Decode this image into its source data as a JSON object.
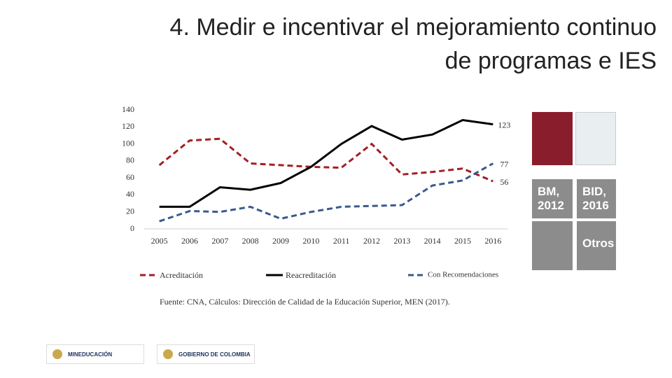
{
  "slide": {
    "title_lines": [
      "4.  Medir e incentivar el mejoramiento continuo",
      "de programas e IES"
    ],
    "source": "Fuente: CNA, Cálculos: Dirección de Calidad de la Educación Superior, MEN (2017).",
    "panels": [
      "BM, 2012",
      "BID, 2016",
      "Otros"
    ],
    "logos": [
      "MINEDUCACIÓN",
      "GOBIERNO DE COLOMBIA"
    ]
  },
  "chart_data": {
    "type": "line",
    "categories": [
      "2005",
      "2006",
      "2007",
      "2008",
      "2009",
      "2010",
      "2011",
      "2012",
      "2013",
      "2014",
      "2015",
      "2016"
    ],
    "series": [
      {
        "name": "Acreditación",
        "color": "#a31f24",
        "line_style": "dashed",
        "values": [
          75,
          104,
          106,
          77,
          75,
          73,
          72,
          100,
          64,
          67,
          71,
          56
        ]
      },
      {
        "name": "Reacreditación",
        "color": "#000000",
        "line_style": "solid",
        "values": [
          26,
          26,
          49,
          46,
          54,
          73,
          100,
          121,
          105,
          111,
          128,
          123
        ]
      },
      {
        "name": "Con Recomendaciones",
        "color": "#3a5a8c",
        "line_style": "dashed",
        "values": [
          9,
          21,
          20,
          26,
          12,
          20,
          26,
          27,
          28,
          51,
          57,
          77
        ]
      }
    ],
    "ylim": [
      0,
      140
    ],
    "yticks": [
      0,
      20,
      40,
      60,
      80,
      100,
      120,
      140
    ],
    "grid": false
  }
}
